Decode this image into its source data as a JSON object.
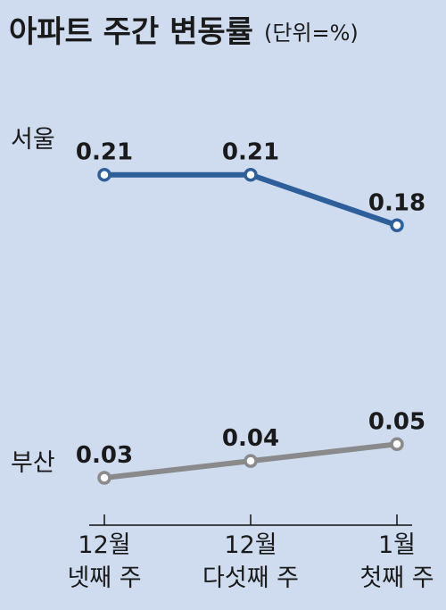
{
  "title": "아파트 주간 변동률",
  "unit": "(단위=%)",
  "chart_data": {
    "type": "line",
    "title": "아파트 주간 변동률",
    "unit": "(단위=%)",
    "categories": [
      [
        "12월",
        "넷째 주"
      ],
      [
        "12월",
        "다섯째 주"
      ],
      [
        "1월",
        "첫째 주"
      ]
    ],
    "series": [
      {
        "name": "서울",
        "values": [
          0.21,
          0.21,
          0.18
        ],
        "color": "#2f5f9a"
      },
      {
        "name": "부산",
        "values": [
          0.03,
          0.04,
          0.05
        ],
        "color": "#8a8a8a"
      }
    ],
    "data_labels": [
      [
        "0.21",
        "0.21",
        "0.18"
      ],
      [
        "0.03",
        "0.04",
        "0.05"
      ]
    ],
    "grid": false,
    "legend": "inline-left"
  }
}
